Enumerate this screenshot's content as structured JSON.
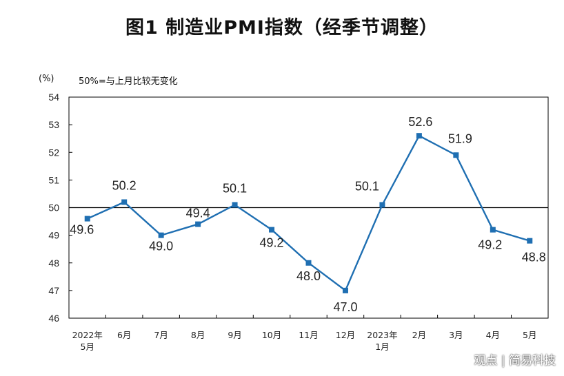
{
  "title": "图1  制造业PMI指数（经季节调整）",
  "unit_label": "(%)",
  "note": "50%=与上月比较无变化",
  "watermark": "观点 | 简易科技",
  "colors": {
    "line": "#1f6fb2",
    "axis": "#000000",
    "text": "#222222"
  },
  "chart_data": {
    "type": "line",
    "title": "图1  制造业PMI指数（经季节调整）",
    "ylabel": "(%)",
    "xlabel": "",
    "ylim": [
      46,
      54
    ],
    "yticks": [
      46,
      47,
      48,
      49,
      50,
      51,
      52,
      53,
      54
    ],
    "reference_line": 50,
    "grid": false,
    "categories": [
      [
        "2022年",
        "5月"
      ],
      [
        "6月"
      ],
      [
        "7月"
      ],
      [
        "8月"
      ],
      [
        "9月"
      ],
      [
        "10月"
      ],
      [
        "11月"
      ],
      [
        "12月"
      ],
      [
        "2023年",
        "1月"
      ],
      [
        "2月"
      ],
      [
        "3月"
      ],
      [
        "4月"
      ],
      [
        "5月"
      ]
    ],
    "values": [
      49.6,
      50.2,
      49.0,
      49.4,
      50.1,
      49.2,
      48.0,
      47.0,
      50.1,
      52.6,
      51.9,
      49.2,
      48.8
    ],
    "data_labels": [
      "49.6",
      "50.2",
      "49.0",
      "49.4",
      "50.1",
      "49.2",
      "48.0",
      "47.0",
      "50.1",
      "52.6",
      "51.9",
      "49.2",
      "48.8"
    ]
  }
}
